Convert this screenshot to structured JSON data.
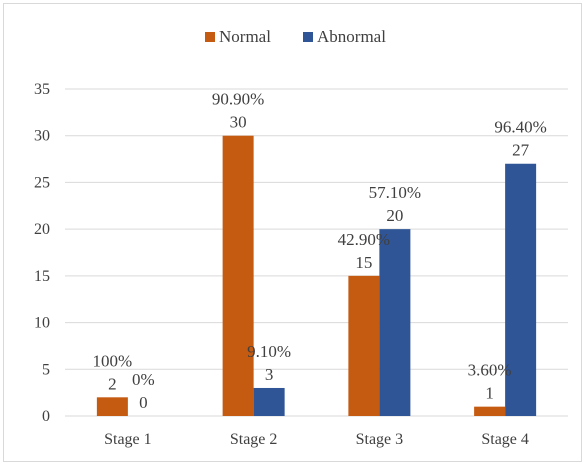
{
  "chart_data": {
    "type": "bar",
    "title": "",
    "xlabel": "",
    "ylabel": "",
    "categories": [
      "Stage 1",
      "Stage 2",
      "Stage 3",
      "Stage 4"
    ],
    "series": [
      {
        "name": "Normal",
        "color": "#c55a11",
        "values": [
          2,
          30,
          15,
          1
        ],
        "percent_labels": [
          "100%",
          "90.90%",
          "42.90%",
          "3.60%"
        ]
      },
      {
        "name": "Abnormal",
        "color": "#2f5597",
        "values": [
          0,
          3,
          20,
          27
        ],
        "percent_labels": [
          "0%",
          "9.10%",
          "57.10%",
          "96.40%"
        ]
      }
    ],
    "ylim": [
      0,
      35
    ],
    "yticks": [
      0,
      5,
      10,
      15,
      20,
      25,
      30,
      35
    ],
    "grid": true,
    "legend": "top-center"
  }
}
